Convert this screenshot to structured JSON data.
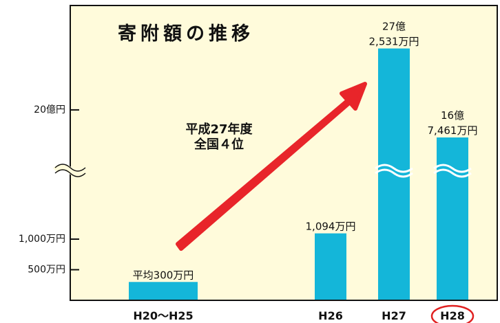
{
  "chart_data": {
    "type": "bar",
    "title": "寄附額の推移",
    "categories": [
      "H20〜H25",
      "H26",
      "H27",
      "H28"
    ],
    "values": [
      3000000,
      10940000,
      2725310000,
      1674610000
    ],
    "value_labels": [
      "平均300万円",
      "1,094万円",
      "27億\n2,531万円",
      "16億\n7,461万円"
    ],
    "color": "#14b6d9",
    "ylim": [
      0,
      2900000000
    ],
    "axis_break": [
      21000000,
      1350000000
    ],
    "yticks": [
      {
        "value": 5000000,
        "label": "500万円"
      },
      {
        "value": 10000000,
        "label": "1,000万円"
      },
      {
        "value": 2000000000,
        "label": "20億円"
      }
    ],
    "annotation": "平成27年度\n全国４位"
  }
}
